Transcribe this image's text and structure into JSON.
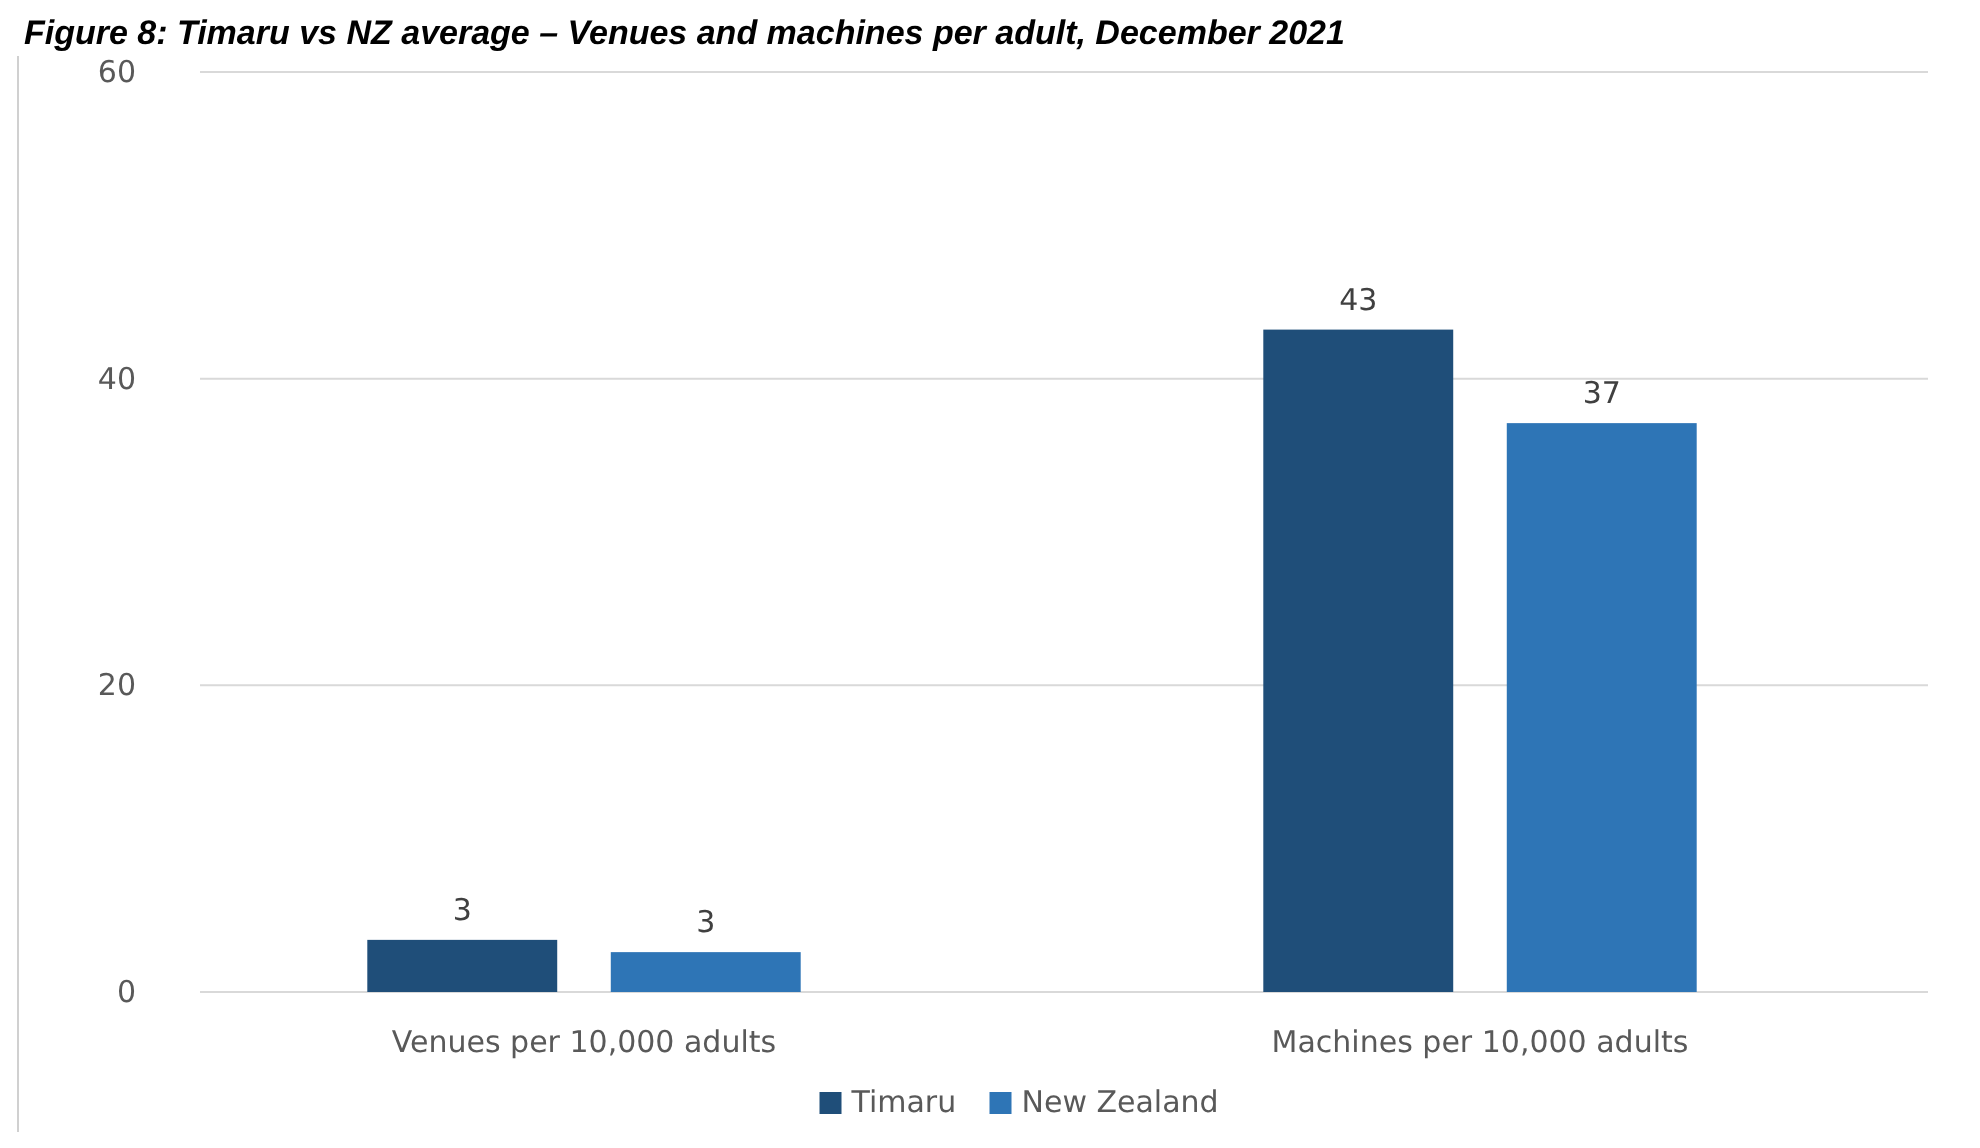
{
  "chart_data": {
    "type": "bar",
    "title": "Figure 8: Timaru vs NZ average – Venues and machines per adult, December 2021",
    "categories": [
      "Venues per 10,000 adults",
      "Machines per 10,000 adults"
    ],
    "series": [
      {
        "name": "Timaru",
        "color": "#1f4e79",
        "values": [
          3.4,
          43.2
        ],
        "value_labels": [
          "3",
          "43"
        ]
      },
      {
        "name": "New Zealand",
        "color": "#2e75b6",
        "values": [
          2.6,
          37.1
        ],
        "value_labels": [
          "3",
          "37"
        ]
      }
    ],
    "ylim": [
      0,
      60
    ],
    "yticks": [
      0,
      20,
      40,
      60
    ],
    "grid": "y",
    "legend": "bottom"
  }
}
